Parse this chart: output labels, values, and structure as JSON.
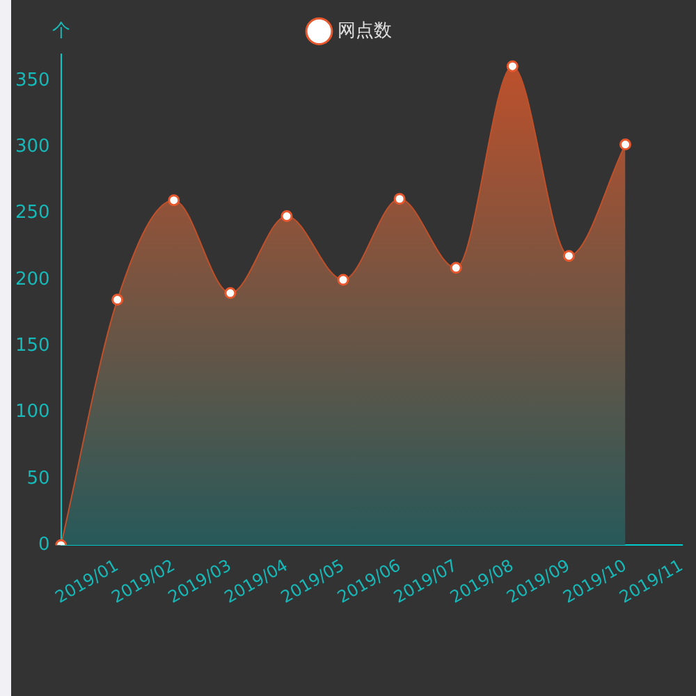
{
  "chart_data": {
    "type": "area",
    "ylabel": "个",
    "categories": [
      null,
      "2019/01",
      "2019/02",
      "2019/03",
      "2019/04",
      "2019/05",
      "2019/06",
      "2019/07",
      "2019/08",
      "2019/09",
      "2019/10",
      "2019/11"
    ],
    "series": [
      {
        "name": "网点数",
        "color": "#c0502a",
        "values": [
          0,
          185,
          260,
          190,
          248,
          200,
          261,
          209,
          361,
          218,
          302,
          null
        ]
      }
    ],
    "ylim": [
      0,
      370
    ],
    "yticks": [
      0,
      50,
      100,
      150,
      200,
      250,
      300,
      350
    ],
    "grid": false,
    "legend": "top",
    "marker": "circle",
    "line_style": "solid"
  }
}
